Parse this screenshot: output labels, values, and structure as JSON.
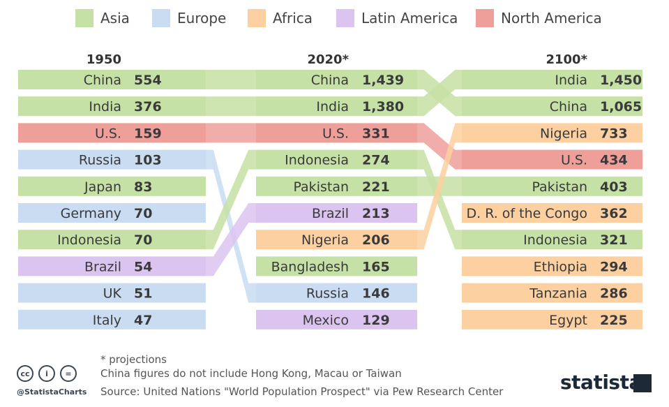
{
  "legend": [
    {
      "label": "Asia",
      "color": "#c5e1a5"
    },
    {
      "label": "Europe",
      "color": "#c9dcf2"
    },
    {
      "label": "Africa",
      "color": "#fcd0a0"
    },
    {
      "label": "Latin America",
      "color": "#dcc4f0"
    },
    {
      "label": "North America",
      "color": "#ef9f9a"
    }
  ],
  "chart_data": {
    "type": "table",
    "units": "population in millions",
    "columns": [
      {
        "year": "1950",
        "rows": [
          {
            "country": "China",
            "value": "554",
            "region": "Asia"
          },
          {
            "country": "India",
            "value": "376",
            "region": "Asia"
          },
          {
            "country": "U.S.",
            "value": "159",
            "region": "North America"
          },
          {
            "country": "Russia",
            "value": "103",
            "region": "Europe"
          },
          {
            "country": "Japan",
            "value": "83",
            "region": "Asia"
          },
          {
            "country": "Germany",
            "value": "70",
            "region": "Europe"
          },
          {
            "country": "Indonesia",
            "value": "70",
            "region": "Asia"
          },
          {
            "country": "Brazil",
            "value": "54",
            "region": "Latin America"
          },
          {
            "country": "UK",
            "value": "51",
            "region": "Europe"
          },
          {
            "country": "Italy",
            "value": "47",
            "region": "Europe"
          }
        ]
      },
      {
        "year": "2020*",
        "rows": [
          {
            "country": "China",
            "value": "1,439",
            "region": "Asia"
          },
          {
            "country": "India",
            "value": "1,380",
            "region": "Asia"
          },
          {
            "country": "U.S.",
            "value": "331",
            "region": "North America"
          },
          {
            "country": "Indonesia",
            "value": "274",
            "region": "Asia"
          },
          {
            "country": "Pakistan",
            "value": "221",
            "region": "Asia"
          },
          {
            "country": "Brazil",
            "value": "213",
            "region": "Latin America"
          },
          {
            "country": "Nigeria",
            "value": "206",
            "region": "Africa"
          },
          {
            "country": "Bangladesh",
            "value": "165",
            "region": "Asia"
          },
          {
            "country": "Russia",
            "value": "146",
            "region": "Europe"
          },
          {
            "country": "Mexico",
            "value": "129",
            "region": "Latin America"
          }
        ]
      },
      {
        "year": "2100*",
        "rows": [
          {
            "country": "India",
            "value": "1,450",
            "region": "Asia"
          },
          {
            "country": "China",
            "value": "1,065",
            "region": "Asia"
          },
          {
            "country": "Nigeria",
            "value": "733",
            "region": "Africa"
          },
          {
            "country": "U.S.",
            "value": "434",
            "region": "North America"
          },
          {
            "country": "Pakistan",
            "value": "403",
            "region": "Asia"
          },
          {
            "country": "D. R. of the Congo",
            "value": "362",
            "region": "Africa"
          },
          {
            "country": "Indonesia",
            "value": "321",
            "region": "Asia"
          },
          {
            "country": "Ethiopia",
            "value": "294",
            "region": "Africa"
          },
          {
            "country": "Tanzania",
            "value": "286",
            "region": "Africa"
          },
          {
            "country": "Egypt",
            "value": "225",
            "region": "Africa"
          }
        ]
      }
    ]
  },
  "footer": {
    "note1": "* projections",
    "note2": "China figures do not include Hong Kong, Macau or Taiwan",
    "source": "Source: United Nations \"World Population Prospect\" via Pew Research Center",
    "handle": "@StatistaCharts",
    "brand": "statista",
    "cc_icons": [
      "cc",
      "i",
      "="
    ]
  }
}
